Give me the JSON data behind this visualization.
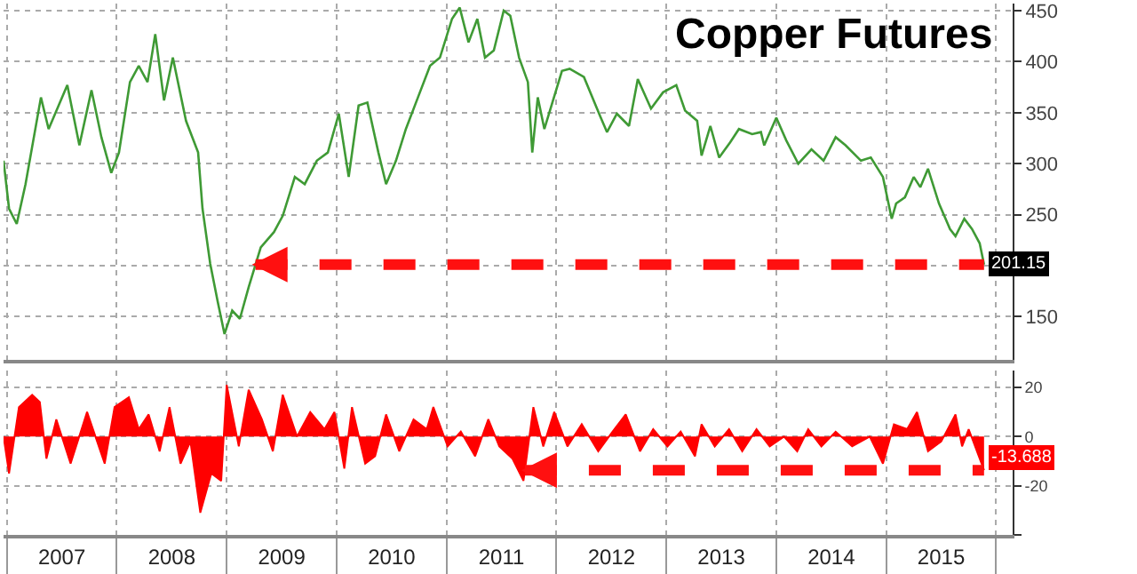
{
  "chart_data": [
    {
      "type": "line",
      "title": "Copper Futures",
      "x": [
        2006.97,
        2007.02,
        2007.09,
        2007.17,
        2007.31,
        2007.38,
        2007.55,
        2007.66,
        2007.77,
        2007.86,
        2007.95,
        2008.02,
        2008.12,
        2008.2,
        2008.28,
        2008.35,
        2008.43,
        2008.51,
        2008.63,
        2008.74,
        2008.78,
        2008.85,
        2008.92,
        2008.98,
        2009.05,
        2009.12,
        2009.2,
        2009.31,
        2009.43,
        2009.51,
        2009.62,
        2009.71,
        2009.82,
        2009.92,
        2010.02,
        2010.11,
        2010.2,
        2010.28,
        2010.38,
        2010.45,
        2010.54,
        2010.63,
        2010.74,
        2010.85,
        2010.94,
        2011.05,
        2011.12,
        2011.2,
        2011.28,
        2011.35,
        2011.43,
        2011.52,
        2011.58,
        2011.66,
        2011.74,
        2011.78,
        2011.83,
        2011.89,
        2012.05,
        2012.12,
        2012.25,
        2012.4,
        2012.46,
        2012.55,
        2012.66,
        2012.74,
        2012.86,
        2012.97,
        2013.09,
        2013.17,
        2013.28,
        2013.32,
        2013.4,
        2013.48,
        2013.58,
        2013.66,
        2013.78,
        2013.86,
        2013.89,
        2014.0,
        2014.09,
        2014.2,
        2014.32,
        2014.43,
        2014.54,
        2014.63,
        2014.77,
        2014.86,
        2014.97,
        2015.05,
        2015.09,
        2015.17,
        2015.25,
        2015.31,
        2015.38,
        2015.48,
        2015.58,
        2015.63,
        2015.71,
        2015.78,
        2015.85,
        2015.89
      ],
      "series": [
        {
          "color": "#3f9a35",
          "values": [
            303,
            256,
            241,
            280,
            365,
            334,
            377,
            318,
            372,
            326,
            291,
            311,
            380,
            396,
            380,
            427,
            362,
            404,
            342,
            311,
            256,
            202,
            164,
            133,
            156,
            148,
            179,
            218,
            233,
            249,
            287,
            280,
            303,
            311,
            349,
            287,
            357,
            360,
            311,
            280,
            303,
            334,
            365,
            396,
            404,
            442,
            453,
            419,
            442,
            404,
            411,
            450,
            445,
            404,
            380,
            311,
            365,
            334,
            391,
            393,
            385,
            346,
            331,
            349,
            337,
            383,
            354,
            370,
            377,
            352,
            342,
            308,
            337,
            306,
            321,
            334,
            329,
            331,
            318,
            345,
            323,
            300,
            314,
            303,
            326,
            318,
            303,
            306,
            287,
            246,
            261,
            267,
            287,
            277,
            295,
            261,
            236,
            229,
            246,
            236,
            222,
            201.15
          ]
        }
      ],
      "xlim": [
        2006.97,
        2016.15
      ],
      "xticks": [
        {
          "value": 2007,
          "label": null
        },
        {
          "value": 2008,
          "label": null
        },
        {
          "value": 2009,
          "label": null
        },
        {
          "value": 2010,
          "label": null
        },
        {
          "value": 2011,
          "label": null
        },
        {
          "value": 2012,
          "label": null
        },
        {
          "value": 2013,
          "label": null
        },
        {
          "value": 2014,
          "label": null
        },
        {
          "value": 2015,
          "label": null
        },
        {
          "value": 2016,
          "label": null
        }
      ],
      "ylim": [
        108,
        457
      ],
      "yticks": [
        150,
        {
          "value": 200,
          "label": null
        },
        250,
        300,
        350,
        400,
        450
      ],
      "grid": true,
      "tick_labels": "y",
      "annotations": [
        {
          "text": "201.15",
          "x": 2015.89,
          "y": 201.15
        }
      ]
    },
    {
      "type": "area",
      "x": [
        2006.97,
        2007.02,
        2007.11,
        2007.23,
        2007.3,
        2007.36,
        2007.45,
        2007.58,
        2007.73,
        2007.89,
        2007.98,
        2008.11,
        2008.2,
        2008.29,
        2008.39,
        2008.48,
        2008.58,
        2008.67,
        2008.76,
        2008.86,
        2008.95,
        2009.0,
        2009.11,
        2009.2,
        2009.32,
        2009.42,
        2009.51,
        2009.64,
        2009.76,
        2009.89,
        2009.98,
        2010.07,
        2010.14,
        2010.26,
        2010.35,
        2010.45,
        2010.57,
        2010.7,
        2010.82,
        2010.88,
        2011.01,
        2011.13,
        2011.26,
        2011.38,
        2011.48,
        2011.6,
        2011.7,
        2011.79,
        2011.88,
        2011.98,
        2012.1,
        2012.23,
        2012.38,
        2012.51,
        2012.63,
        2012.76,
        2012.88,
        2013.01,
        2013.13,
        2013.26,
        2013.32,
        2013.44,
        2013.57,
        2013.69,
        2013.82,
        2013.94,
        2014.07,
        2014.19,
        2014.29,
        2014.41,
        2014.54,
        2014.69,
        2014.85,
        2014.97,
        2015.07,
        2015.19,
        2015.28,
        2015.38,
        2015.5,
        2015.63,
        2015.69,
        2015.75,
        2015.89
      ],
      "series": [
        {
          "color": "#ff0000",
          "values": [
            0,
            -15,
            12,
            17,
            14,
            -9,
            7,
            -11,
            10,
            -11,
            12,
            16,
            3,
            9,
            -6,
            12,
            -11,
            -2,
            -31,
            -15,
            -18,
            21,
            -4,
            19,
            7,
            -6,
            17,
            0,
            10,
            3,
            10,
            -13,
            12,
            -11,
            -8,
            9,
            -6,
            7,
            3,
            12,
            -4,
            2,
            -8,
            7,
            -4,
            -9,
            -18,
            12,
            -4,
            10,
            -4,
            5,
            -6,
            2,
            9,
            -6,
            3,
            -4,
            2,
            -8,
            5,
            -4,
            3,
            -6,
            3,
            -4,
            0,
            -6,
            3,
            -4,
            2,
            -4,
            0,
            -11,
            5,
            3,
            10,
            -6,
            -2,
            9,
            -4,
            3,
            -13.688
          ]
        }
      ],
      "xlim": [
        2006.97,
        2016.15
      ],
      "xticks": [
        {
          "value": 2007,
          "label": null
        },
        {
          "value": 2007.5,
          "label": "2007"
        },
        {
          "value": 2008,
          "label": null
        },
        {
          "value": 2008.5,
          "label": "2008"
        },
        {
          "value": 2009,
          "label": null
        },
        {
          "value": 2009.5,
          "label": "2009"
        },
        {
          "value": 2010,
          "label": null
        },
        {
          "value": 2010.5,
          "label": "2010"
        },
        {
          "value": 2011,
          "label": null
        },
        {
          "value": 2011.5,
          "label": "2011"
        },
        {
          "value": 2012,
          "label": null
        },
        {
          "value": 2012.5,
          "label": "2012"
        },
        {
          "value": 2013,
          "label": null
        },
        {
          "value": 2013.5,
          "label": "2013"
        },
        {
          "value": 2014,
          "label": null
        },
        {
          "value": 2014.5,
          "label": "2014"
        },
        {
          "value": 2015,
          "label": null
        },
        {
          "value": 2015.5,
          "label": "2015"
        },
        {
          "value": 2016,
          "label": null
        }
      ],
      "ylim": [
        -40,
        27
      ],
      "yticks": [
        20,
        0,
        -20,
        {
          "value": -40,
          "label": null
        }
      ],
      "grid": true,
      "annotations": [
        {
          "text": "-13.688",
          "x": 2015.89,
          "y": -13.688
        }
      ]
    }
  ]
}
